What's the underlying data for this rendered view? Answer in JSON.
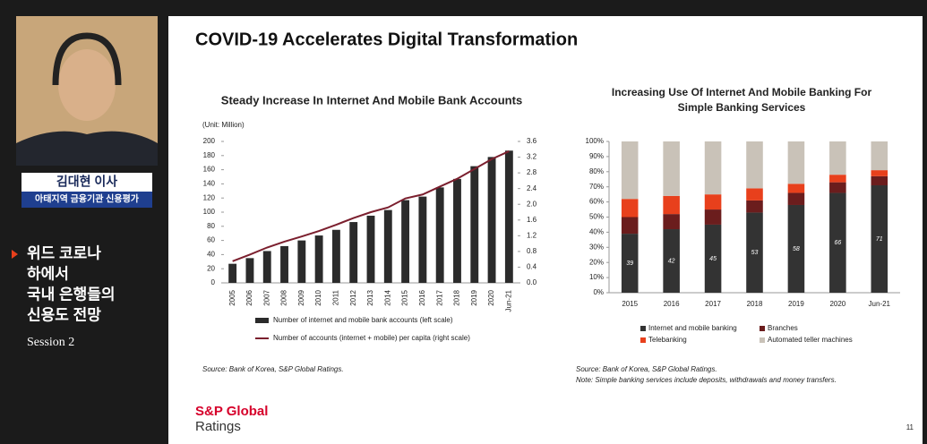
{
  "sidebar": {
    "speaker_name": "김대현 이사",
    "speaker_role": "아태지역 금융기관 신용평가",
    "session_title": [
      "위드 코로나",
      "하에서",
      "국내 은행들의",
      "신용도 전망"
    ],
    "session": "Session 2"
  },
  "slide": {
    "title": "COVID-19 Accelerates Digital Transformation",
    "logo": [
      "S&P Global",
      "Ratings"
    ],
    "page_number": "11"
  },
  "chart_data": [
    {
      "type": "combo",
      "title": "Steady Increase In Internet And Mobile Bank Accounts",
      "unit": "(Unit: Million)",
      "categories": [
        "2005",
        "2006",
        "2007",
        "2008",
        "2009",
        "2010",
        "2011",
        "2012",
        "2013",
        "2014",
        "2015",
        "2016",
        "2017",
        "2018",
        "2019",
        "2020",
        "Jun-21"
      ],
      "series": [
        {
          "name": "Number of internet and mobile bank accounts (left scale)",
          "color": "#2b2b2b",
          "values": [
            27,
            35,
            45,
            52,
            60,
            67,
            75,
            86,
            95,
            103,
            117,
            122,
            135,
            147,
            165,
            178,
            187
          ]
        },
        {
          "name": "Number of accounts (internet + mobile) per capita (right scale)",
          "color": "#7b1f2e",
          "axis": "y2",
          "values": [
            0.55,
            0.72,
            0.9,
            1.05,
            1.18,
            1.32,
            1.48,
            1.65,
            1.8,
            1.92,
            2.15,
            2.25,
            2.45,
            2.65,
            2.9,
            3.15,
            3.35
          ]
        }
      ],
      "ylim": [
        0,
        200
      ],
      "yticks": [
        0,
        20,
        40,
        60,
        80,
        100,
        120,
        140,
        160,
        180,
        200
      ],
      "y2lim": [
        0,
        3.6
      ],
      "y2ticks": [
        {
          "value": 0,
          "label": "0.0"
        },
        0.4,
        0.8,
        1.2,
        1.6,
        {
          "value": 2,
          "label": "2.0"
        },
        2.4,
        2.8,
        3.2,
        3.6
      ],
      "source": "Source: Bank of Korea, S&P Global Ratings."
    },
    {
      "type": "stacked",
      "title": [
        "Increasing Use Of Internet And Mobile Banking For",
        "Simple Banking Services"
      ],
      "categories": [
        "2015",
        "2016",
        "2017",
        "2018",
        "2019",
        "2020",
        "Jun-21"
      ],
      "series": [
        {
          "name": "Internet and mobile banking",
          "color": "#333333",
          "values": [
            39,
            42,
            45,
            53,
            58,
            66,
            71
          ]
        },
        {
          "name": "Branches",
          "color": "#6b1d1d",
          "values": [
            11,
            10,
            10,
            8,
            8,
            7,
            6
          ]
        },
        {
          "name": "Telebanking",
          "color": "#e8401c",
          "values": [
            12,
            12,
            10,
            8,
            6,
            5,
            4
          ]
        },
        {
          "name": "Automated teller machines",
          "color": "#c9c2b8",
          "values": [
            38,
            36,
            35,
            31,
            28,
            22,
            19
          ]
        }
      ],
      "ylim": [
        0,
        100
      ],
      "yticks": [
        {
          "value": 0,
          "label": "0%"
        },
        {
          "value": 10,
          "label": "10%"
        },
        {
          "value": 20,
          "label": "20%"
        },
        {
          "value": 30,
          "label": "30%"
        },
        {
          "value": 40,
          "label": "40%"
        },
        {
          "value": 50,
          "label": "50%"
        },
        {
          "value": 60,
          "label": "60%"
        },
        {
          "value": 70,
          "label": "70%"
        },
        {
          "value": 80,
          "label": "80%"
        },
        {
          "value": 90,
          "label": "90%"
        },
        {
          "value": 100,
          "label": "100%"
        }
      ],
      "source": [
        "Source: Bank of Korea, S&P Global Ratings.",
        "Note: Simple banking services include deposits, withdrawals and money transfers."
      ]
    }
  ]
}
